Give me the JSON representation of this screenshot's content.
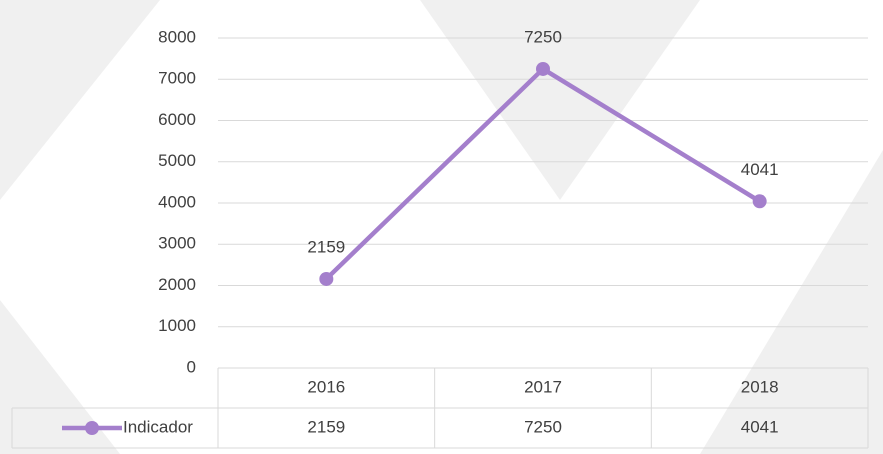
{
  "chart_data": {
    "type": "line",
    "categories": [
      "2016",
      "2017",
      "2018"
    ],
    "series": [
      {
        "name": "Indicador",
        "color": "#a47fcc",
        "values": [
          2159,
          7250,
          4041
        ]
      }
    ],
    "ylim": [
      0,
      8000
    ],
    "yticks": [
      0,
      1000,
      2000,
      3000,
      4000,
      5000,
      6000,
      7000,
      8000
    ],
    "grid": true,
    "data_labels": true,
    "data_table": true
  }
}
